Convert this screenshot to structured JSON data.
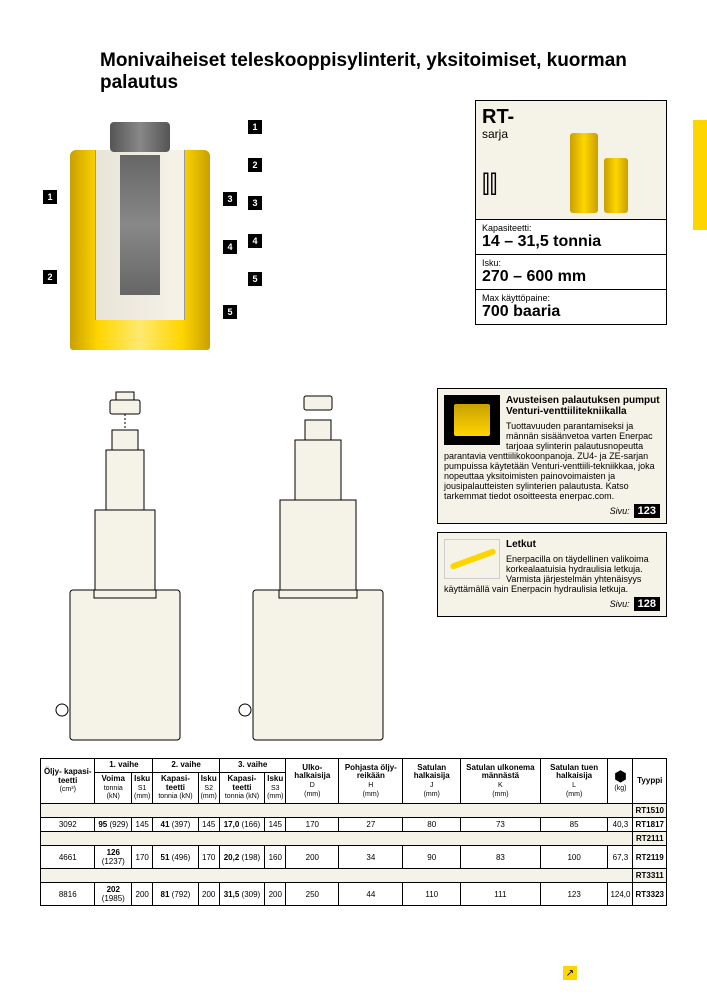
{
  "title": "Monivaiheiset teleskooppisylinterit, yksitoimiset, kuorman palautus",
  "series": {
    "name": "RT-",
    "sub": "sarja"
  },
  "specs": [
    {
      "label": "Kapasiteetti:",
      "value": "14 – 31,5 tonnia"
    },
    {
      "label": "Isku:",
      "value": "270 – 600 mm"
    },
    {
      "label": "Max käyttöpaine:",
      "value": "700 baaria"
    }
  ],
  "callouts": [
    "1",
    "2",
    "3",
    "3",
    "4",
    "4",
    "5",
    "5"
  ],
  "listCallouts": [
    "1",
    "2",
    "3",
    "4",
    "5"
  ],
  "info1": {
    "title": "Avusteisen palautuksen pumput Venturi-venttiilitekniikalla",
    "body": "Tuottavuuden parantamiseksi ja männän sisäänvetoa varten Enerpac tarjoaa sylinterin palautusnopeutta parantavia venttiilikokoonpanoja. ZU4- ja ZE-sarjan pumpuissa käytetään Venturi-venttiili-tekniikkaa, joka nopeuttaa yksitoimisten painovoimaisten ja jousipalautteisten sylinterien palautusta. Katso tarkemmat tiedot osoitteesta enerpac.com.",
    "pageLabel": "Sivu:",
    "page": "123"
  },
  "info2": {
    "title": "Letkut",
    "body": "Enerpacilla on täydellinen valikoima korkealaatuisia hydraulisia letkuja. Varmista järjestelmän yhtenäisyys käyttämällä vain Enerpacin hydraulisia letkuja.",
    "pageLabel": "Sivu:",
    "page": "128"
  },
  "table": {
    "headers": {
      "oil": "Öljy-\nkapasi-\nteetti",
      "oilUnit": "(cm³)",
      "stage1": "1. vaihe",
      "stage2": "2. vaihe",
      "stage3": "3. vaihe",
      "force": "Voima",
      "forceUnit": "tonnia (kN)",
      "cap": "Kapasi-\nteetti",
      "capUnit": "tonnia (kN)",
      "stroke": "Isku",
      "s1": "S1",
      "s2": "S2",
      "s3": "S3",
      "mm": "(mm)",
      "outerDia": "Ulko-\nhalkaisija",
      "d": "D",
      "bottomOil": "Pohjasta\nöljy-\nreikään",
      "h": "H",
      "saddleDia": "Satulan\nhalkaisija",
      "j": "J",
      "saddleExt": "Satulan\nulkonema\nmännästä",
      "k": "K",
      "saddleSup": "Satulan\ntuen\nhalkaisija",
      "l": "L",
      "weight": "",
      "kg": "(kg)",
      "type": "Tyyppi"
    },
    "rows": [
      {
        "shade": true,
        "type": "RT1510"
      },
      {
        "oil": "3092",
        "force": "95 (929)",
        "s1": "145",
        "cap2": "41 (397)",
        "s2": "145",
        "cap3": "17,0 (166)",
        "s3": "145",
        "d": "170",
        "h": "27",
        "j": "80",
        "k": "73",
        "l": "85",
        "w": "40,3",
        "type": "RT1817",
        "shade": false
      },
      {
        "shade": true,
        "type": "RT2111"
      },
      {
        "oil": "4661",
        "force": "126 (1237)",
        "s1": "170",
        "cap2": "51 (496)",
        "s2": "170",
        "cap3": "20,2 (198)",
        "s3": "160",
        "d": "200",
        "h": "34",
        "j": "90",
        "k": "83",
        "l": "100",
        "w": "67,3",
        "type": "RT2119",
        "shade": false
      },
      {
        "shade": true,
        "type": "RT3311"
      },
      {
        "oil": "8816",
        "force": "202 (1985)",
        "s1": "200",
        "cap2": "81 (792)",
        "s2": "200",
        "cap3": "31,5 (309)",
        "s3": "200",
        "d": "250",
        "h": "44",
        "j": "110",
        "k": "111",
        "l": "123",
        "w": "124,0",
        "type": "RT3323",
        "shade": false
      }
    ]
  }
}
